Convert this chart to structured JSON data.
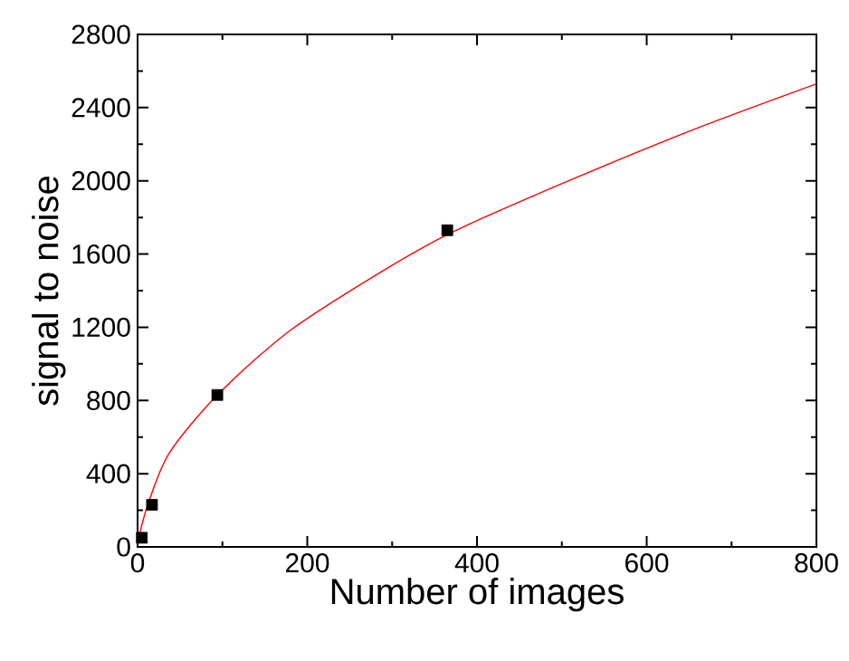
{
  "chart_data": {
    "type": "scatter",
    "xlabel": "Number of images",
    "ylabel": "signal to noise",
    "xlim": [
      0,
      800
    ],
    "ylim": [
      0,
      2800
    ],
    "xticks": [
      0,
      200,
      400,
      600,
      800
    ],
    "yticks": [
      0,
      400,
      800,
      1200,
      1600,
      2000,
      2400,
      2800
    ],
    "grid": false,
    "series": [
      {
        "marker": "square",
        "color": "#000000",
        "x": [
          5,
          17,
          94,
          365
        ],
        "values": [
          50,
          230,
          830,
          1730
        ]
      },
      {
        "type": "line",
        "marker": "none",
        "color": "#ff0000",
        "x": [
          1.5,
          12,
          37,
          94,
          179,
          286,
          371,
          513,
          655,
          800
        ],
        "values": [
          50,
          230,
          510,
          830,
          1180,
          1500,
          1720,
          2010,
          2280,
          2530
        ]
      }
    ]
  }
}
